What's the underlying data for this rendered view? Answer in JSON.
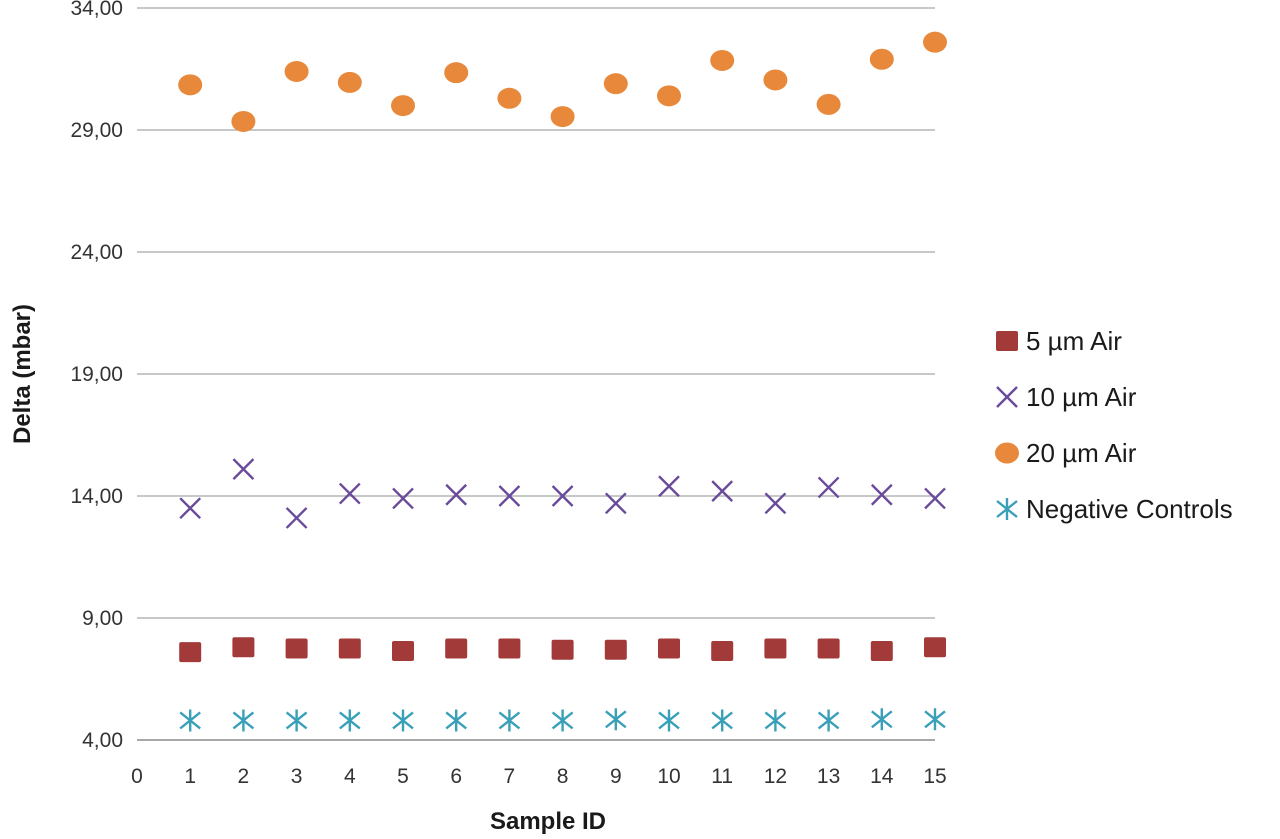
{
  "chart_data": {
    "type": "scatter",
    "xlabel": "Sample ID",
    "ylabel": "Delta (mbar)",
    "xlim": [
      0,
      15
    ],
    "ylim": [
      4,
      34
    ],
    "x_ticks": [
      "0",
      "1",
      "2",
      "3",
      "4",
      "5",
      "6",
      "7",
      "8",
      "9",
      "10",
      "11",
      "12",
      "13",
      "14",
      "15"
    ],
    "y_ticks": [
      "4,00",
      "9,00",
      "14,00",
      "19,00",
      "24,00",
      "29,00",
      "34,00"
    ],
    "grid": "horizontal",
    "legend_position": "right",
    "x": [
      1,
      2,
      3,
      4,
      5,
      6,
      7,
      8,
      9,
      10,
      11,
      12,
      13,
      14,
      15
    ],
    "series": [
      {
        "name": "5 µm Air",
        "marker": "square",
        "color": "#a33a3a",
        "values": [
          7.6,
          7.8,
          7.75,
          7.75,
          7.65,
          7.75,
          7.75,
          7.7,
          7.7,
          7.75,
          7.65,
          7.75,
          7.75,
          7.65,
          7.8
        ]
      },
      {
        "name": "10 µm Air",
        "marker": "x",
        "color": "#6a4a9a",
        "values": [
          13.5,
          15.1,
          13.1,
          14.1,
          13.9,
          14.05,
          14.0,
          14.0,
          13.7,
          14.4,
          14.2,
          13.7,
          14.35,
          14.05,
          13.9
        ]
      },
      {
        "name": "20 µm Air",
        "marker": "circle",
        "color": "#e8883a",
        "values": [
          30.85,
          29.35,
          31.4,
          30.95,
          30.0,
          31.35,
          30.3,
          29.55,
          30.9,
          30.4,
          31.85,
          31.05,
          30.05,
          31.9,
          32.6
        ]
      },
      {
        "name": "Negative Controls",
        "marker": "asterisk",
        "color": "#3aa0b8",
        "values": [
          4.8,
          4.8,
          4.8,
          4.8,
          4.8,
          4.8,
          4.8,
          4.8,
          4.85,
          4.8,
          4.8,
          4.8,
          4.8,
          4.85,
          4.85
        ]
      }
    ]
  }
}
